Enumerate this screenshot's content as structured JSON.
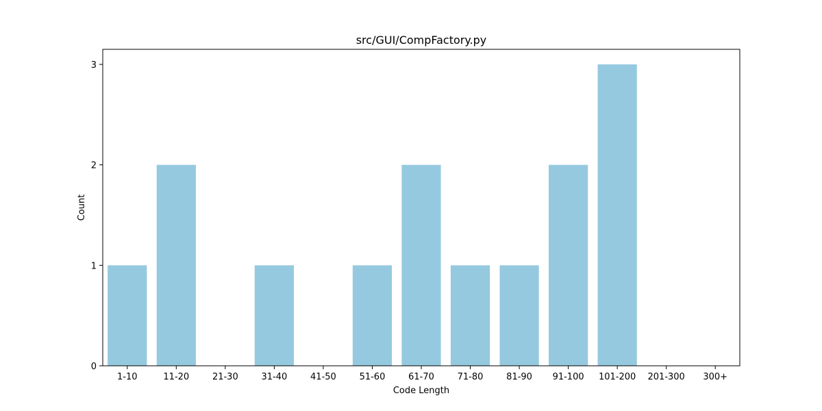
{
  "chart_data": {
    "type": "bar",
    "title": "src/GUI/CompFactory.py",
    "xlabel": "Code Length",
    "ylabel": "Count",
    "categories": [
      "1-10",
      "11-20",
      "21-30",
      "31-40",
      "41-50",
      "51-60",
      "61-70",
      "71-80",
      "81-90",
      "91-100",
      "101-200",
      "201-300",
      "300+"
    ],
    "values": [
      1,
      2,
      0,
      1,
      0,
      1,
      2,
      1,
      1,
      2,
      3,
      0,
      0
    ],
    "yticks": [
      0,
      1,
      2,
      3
    ],
    "ylim": [
      0,
      3.15
    ],
    "grid": false,
    "legend": "none",
    "bar_color": "#95c9df"
  }
}
